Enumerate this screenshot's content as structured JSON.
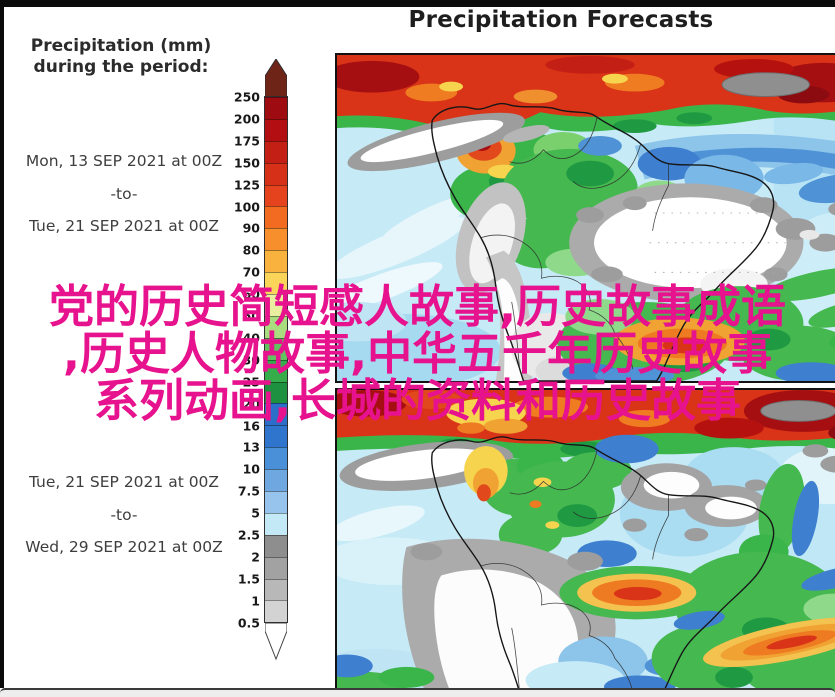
{
  "title": "Precipitation Forecasts",
  "sidebar": {
    "heading_line1": "Precipitation (mm)",
    "heading_line2": "during the period:",
    "period1": {
      "start": "Mon, 13 SEP 2021 at 00Z",
      "separator": "-to-",
      "end": "Tue, 21 SEP 2021 at 00Z"
    },
    "period2": {
      "start": "Tue, 21 SEP 2021 at 00Z",
      "separator": "-to-",
      "end": "Wed, 29 SEP 2021 at 00Z"
    }
  },
  "colorbar": {
    "unit": "mm",
    "ticks": [
      "250",
      "200",
      "175",
      "150",
      "125",
      "100",
      "90",
      "80",
      "70",
      "60",
      "50",
      "40",
      "30",
      "25",
      "20",
      "16",
      "13",
      "10",
      "7.5",
      "5",
      "2.5",
      "2",
      "1.5",
      "1",
      "0.5"
    ],
    "segment_colors": [
      "#9e0c12",
      "#b30f13",
      "#c41f15",
      "#d63019",
      "#e5431d",
      "#f26b21",
      "#f68f2c",
      "#f9b23e",
      "#fbd45a",
      "#e9ef9e",
      "#a8dc7f",
      "#62c45e",
      "#35ad4b",
      "#1d9140",
      "#2b6fc8",
      "#2f74cd",
      "#4a90d9",
      "#6fa8e0",
      "#97c4ec",
      "#c3e9f7",
      "#8e8e8e",
      "#a2a2a2",
      "#b8b8b8",
      "#d3d3d3"
    ],
    "arrow_top_color": "#6f2418",
    "arrow_bottom_color": "#ffffff"
  },
  "watermark": {
    "lines": [
      "党的历史简短感人故事,历史故事成语",
      ",历史人物故事,中华五千年历史故事",
      "系列动画,长城的资料和历史故事"
    ],
    "color": "#e7128d"
  }
}
